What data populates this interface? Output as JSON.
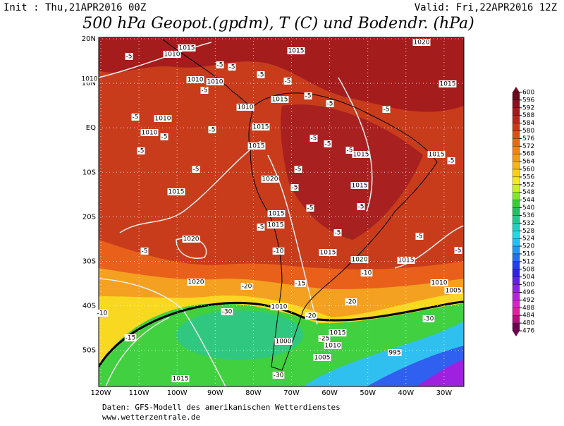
{
  "header": {
    "init": "Init : Thu,21APR2016 00Z",
    "valid": "Valid: Fri,22APR2016 12Z",
    "title": "500 hPa Geopot.(gpdm), T (C) und Bodendr. (hPa)"
  },
  "map": {
    "lat_labels": [
      "20N",
      "10N",
      "EQ",
      "10S",
      "20S",
      "30S",
      "40S",
      "50S"
    ],
    "lon_labels": [
      "120W",
      "110W",
      "100W",
      "90W",
      "80W",
      "70W",
      "60W",
      "50W",
      "40W",
      "30W"
    ],
    "isobar_labels": [
      "1015",
      "1010",
      "1015",
      "1020",
      "1010",
      "1010",
      "1010",
      "1015",
      "1010",
      "1015",
      "1010",
      "1010",
      "1015",
      "1015",
      "1015",
      "1015",
      "1020",
      "1015",
      "1015",
      "1015",
      "1015",
      "1020",
      "1015",
      "1020",
      "1015",
      "1020",
      "1010",
      "1005",
      "1010",
      "1015",
      "1000",
      "1010",
      "1005",
      "995",
      "1015"
    ],
    "temp_labels": [
      "-5",
      "-5",
      "-5",
      "-5",
      "-5",
      "-5",
      "-5",
      "-5",
      "-5",
      "-5",
      "-5",
      "-5",
      "-5",
      "-5",
      "-5",
      "-5",
      "-5",
      "-5",
      "-5",
      "-5",
      "-5",
      "-5",
      "-5",
      "-5",
      "-5",
      "-5",
      "-5",
      "-10",
      "-10",
      "-10",
      "-15",
      "-15",
      "-20",
      "-20",
      "-20",
      "-25",
      "-30",
      "-30",
      "-30"
    ]
  },
  "colorbar": {
    "ticks": [
      600,
      596,
      592,
      588,
      584,
      580,
      576,
      572,
      568,
      564,
      560,
      556,
      552,
      548,
      544,
      540,
      536,
      532,
      528,
      524,
      520,
      516,
      512,
      508,
      504,
      500,
      496,
      492,
      488,
      484,
      480,
      476
    ],
    "colors": [
      "#6e0a1e",
      "#8b1020",
      "#a31a1a",
      "#b8281a",
      "#cc3a14",
      "#dc5014",
      "#e86a10",
      "#f08410",
      "#f49c10",
      "#f8b410",
      "#fcd010",
      "#f4e820",
      "#c8f020",
      "#80e828",
      "#30d030",
      "#20c060",
      "#20c890",
      "#20d0c0",
      "#20d8e8",
      "#20c0f8",
      "#2098f8",
      "#2070f0",
      "#2040f0",
      "#3020e8",
      "#6020e8",
      "#9020e8",
      "#b820e0",
      "#d820d0",
      "#e020a0",
      "#b01080",
      "#700050"
    ]
  },
  "footer": {
    "line1": "Daten: GFS-Modell des amerikanischen Wetterdienstes",
    "line2": "www.wetterzentrale.de"
  }
}
